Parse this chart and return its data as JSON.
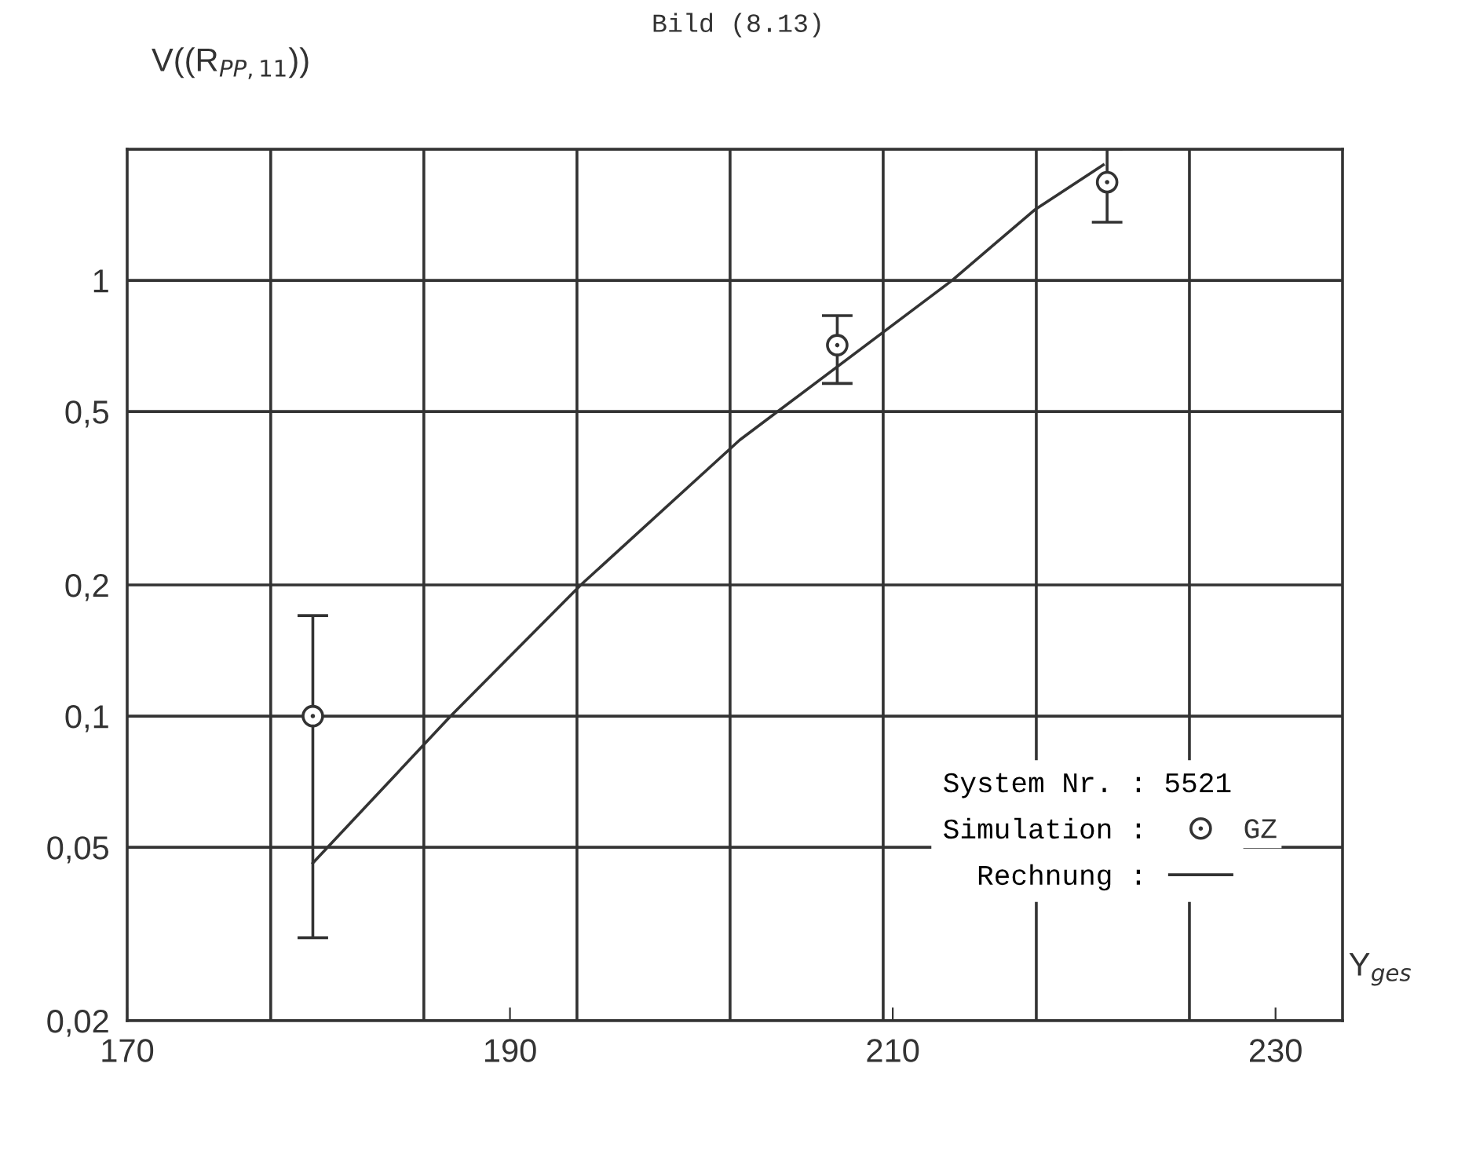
{
  "chart_data": {
    "type": "scatter",
    "title": "Bild (8.13)",
    "ylabel": "V((R$_{PP,11}$))",
    "xlabel": "Y$_{ges}$",
    "legend_title": "System Nr. : 5521",
    "annotations": [
      "GZ"
    ],
    "series": [
      {
        "name": "Simulation :",
        "color": "#333333",
        "x": [
          179.7,
          207.1,
          221.2
        ],
        "values": [
          0.1,
          0.71,
          1.68
        ],
        "errors": [
          [
            0.031,
            0.17
          ],
          [
            0.58,
            0.83
          ],
          [
            1.36,
            2
          ]
        ],
        "marker": "circle"
      },
      {
        "type": "line",
        "name": "Rechnung :",
        "color": "#333333",
        "x": [
          179.7,
          186.9,
          193.7,
          202,
          213.1,
          217.4,
          221
        ],
        "values": [
          0.046,
          0.1,
          0.2,
          0.43,
          1,
          1.45,
          1.84
        ],
        "line_style": "solid"
      }
    ],
    "log": "y",
    "xlim": [
      170,
      233.5
    ],
    "ylim": [
      0.02,
      2
    ],
    "xticks": [
      170,
      190,
      210,
      230,
      {
        "value": 177.5,
        "label": null
      },
      {
        "value": 185.5,
        "label": null
      },
      {
        "value": 193.5,
        "label": null
      },
      {
        "value": 201.5,
        "label": null
      },
      {
        "value": 209.5,
        "label": null
      },
      {
        "value": 217.5,
        "label": null
      },
      {
        "value": 225.5,
        "label": null
      }
    ],
    "yticks": [
      {
        "value": 0.02,
        "label": "0,02"
      },
      {
        "value": 0.05,
        "label": "0,05"
      },
      {
        "value": 0.1,
        "label": "0,1"
      },
      {
        "value": 0.2,
        "label": "0,2"
      },
      {
        "value": 0.5,
        "label": "0,5"
      },
      1,
      {
        "value": 2,
        "label": null
      }
    ],
    "grid": true,
    "legend": "bottom right"
  }
}
